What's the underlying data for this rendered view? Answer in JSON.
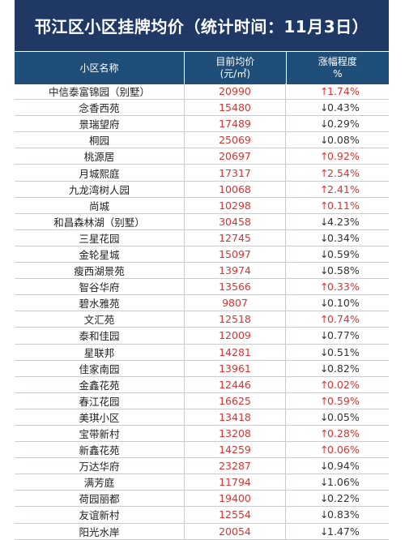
{
  "title": "邗江区小区挂牌均价（统计时间：11月3日）",
  "columns": {
    "name": "小区名称",
    "price_line1": "目前均价",
    "price_line2": "(元/㎡)",
    "change_line1": "涨幅程度",
    "change_line2": "%"
  },
  "rows": [
    {
      "name": "中信泰富锦园（别墅）",
      "price": "20990",
      "dir": "up",
      "arrow": "↑",
      "change": "1.74%"
    },
    {
      "name": "念香西苑",
      "price": "15480",
      "dir": "down",
      "arrow": "↓",
      "change": "0.43%"
    },
    {
      "name": "景瑞望府",
      "price": "17489",
      "dir": "down",
      "arrow": "↓",
      "change": "0.29%"
    },
    {
      "name": "桐园",
      "price": "25069",
      "dir": "down",
      "arrow": "↓",
      "change": "0.08%"
    },
    {
      "name": "桃源居",
      "price": "20697",
      "dir": "up",
      "arrow": "↑",
      "change": "0.92%"
    },
    {
      "name": "月城熙庭",
      "price": "17317",
      "dir": "up",
      "arrow": "↑",
      "change": "2.54%"
    },
    {
      "name": "九龙湾树人园",
      "price": "10068",
      "dir": "up",
      "arrow": "↑",
      "change": "2.41%"
    },
    {
      "name": "尚城",
      "price": "10298",
      "dir": "up",
      "arrow": "↑",
      "change": "0.11%"
    },
    {
      "name": "和昌森林湖（别墅）",
      "price": "30458",
      "dir": "down",
      "arrow": "↓",
      "change": "4.23%"
    },
    {
      "name": "三星花园",
      "price": "12745",
      "dir": "down",
      "arrow": "↓",
      "change": "0.34%"
    },
    {
      "name": "金轮星城",
      "price": "15097",
      "dir": "down",
      "arrow": "↓",
      "change": "0.59%"
    },
    {
      "name": "瘦西湖景苑",
      "price": "13974",
      "dir": "down",
      "arrow": "↓",
      "change": "0.58%"
    },
    {
      "name": "智谷华府",
      "price": "13566",
      "dir": "up",
      "arrow": "↑",
      "change": "0.33%"
    },
    {
      "name": "碧水雅苑",
      "price": "9807",
      "dir": "down",
      "arrow": "↓",
      "change": "0.10%"
    },
    {
      "name": "文汇苑",
      "price": "12518",
      "dir": "up",
      "arrow": "↑",
      "change": "0.74%"
    },
    {
      "name": "泰和佳园",
      "price": "12009",
      "dir": "down",
      "arrow": "↓",
      "change": "0.77%"
    },
    {
      "name": "星联邦",
      "price": "14281",
      "dir": "down",
      "arrow": "↓",
      "change": "0.51%"
    },
    {
      "name": "佳家南园",
      "price": "13961",
      "dir": "down",
      "arrow": "↓",
      "change": "0.82%"
    },
    {
      "name": "金鑫花苑",
      "price": "12446",
      "dir": "up",
      "arrow": "↑",
      "change": "0.02%"
    },
    {
      "name": "春江花园",
      "price": "16625",
      "dir": "up",
      "arrow": "↑",
      "change": "0.59%"
    },
    {
      "name": "美琪小区",
      "price": "13418",
      "dir": "down",
      "arrow": "↓",
      "change": "0.05%"
    },
    {
      "name": "宝带新村",
      "price": "13208",
      "dir": "up",
      "arrow": "↑",
      "change": "0.28%"
    },
    {
      "name": "新鑫花苑",
      "price": "14259",
      "dir": "up",
      "arrow": "↑",
      "change": "0.06%"
    },
    {
      "name": "万达华府",
      "price": "23287",
      "dir": "down",
      "arrow": "↓",
      "change": "0.94%"
    },
    {
      "name": "满芳庭",
      "price": "11794",
      "dir": "down",
      "arrow": "↓",
      "change": "1.06%"
    },
    {
      "name": "荷园丽都",
      "price": "19400",
      "dir": "down",
      "arrow": "↓",
      "change": "0.22%"
    },
    {
      "name": "友谊新村",
      "price": "12554",
      "dir": "down",
      "arrow": "↓",
      "change": "0.83%"
    },
    {
      "name": "阳光水岸",
      "price": "20054",
      "dir": "down",
      "arrow": "↓",
      "change": "1.47%"
    }
  ],
  "colors": {
    "title_bg": "#1f3864",
    "header_bg": "#1f4e79",
    "up": "#e03030",
    "down": "#333333",
    "price": "#e03030"
  }
}
